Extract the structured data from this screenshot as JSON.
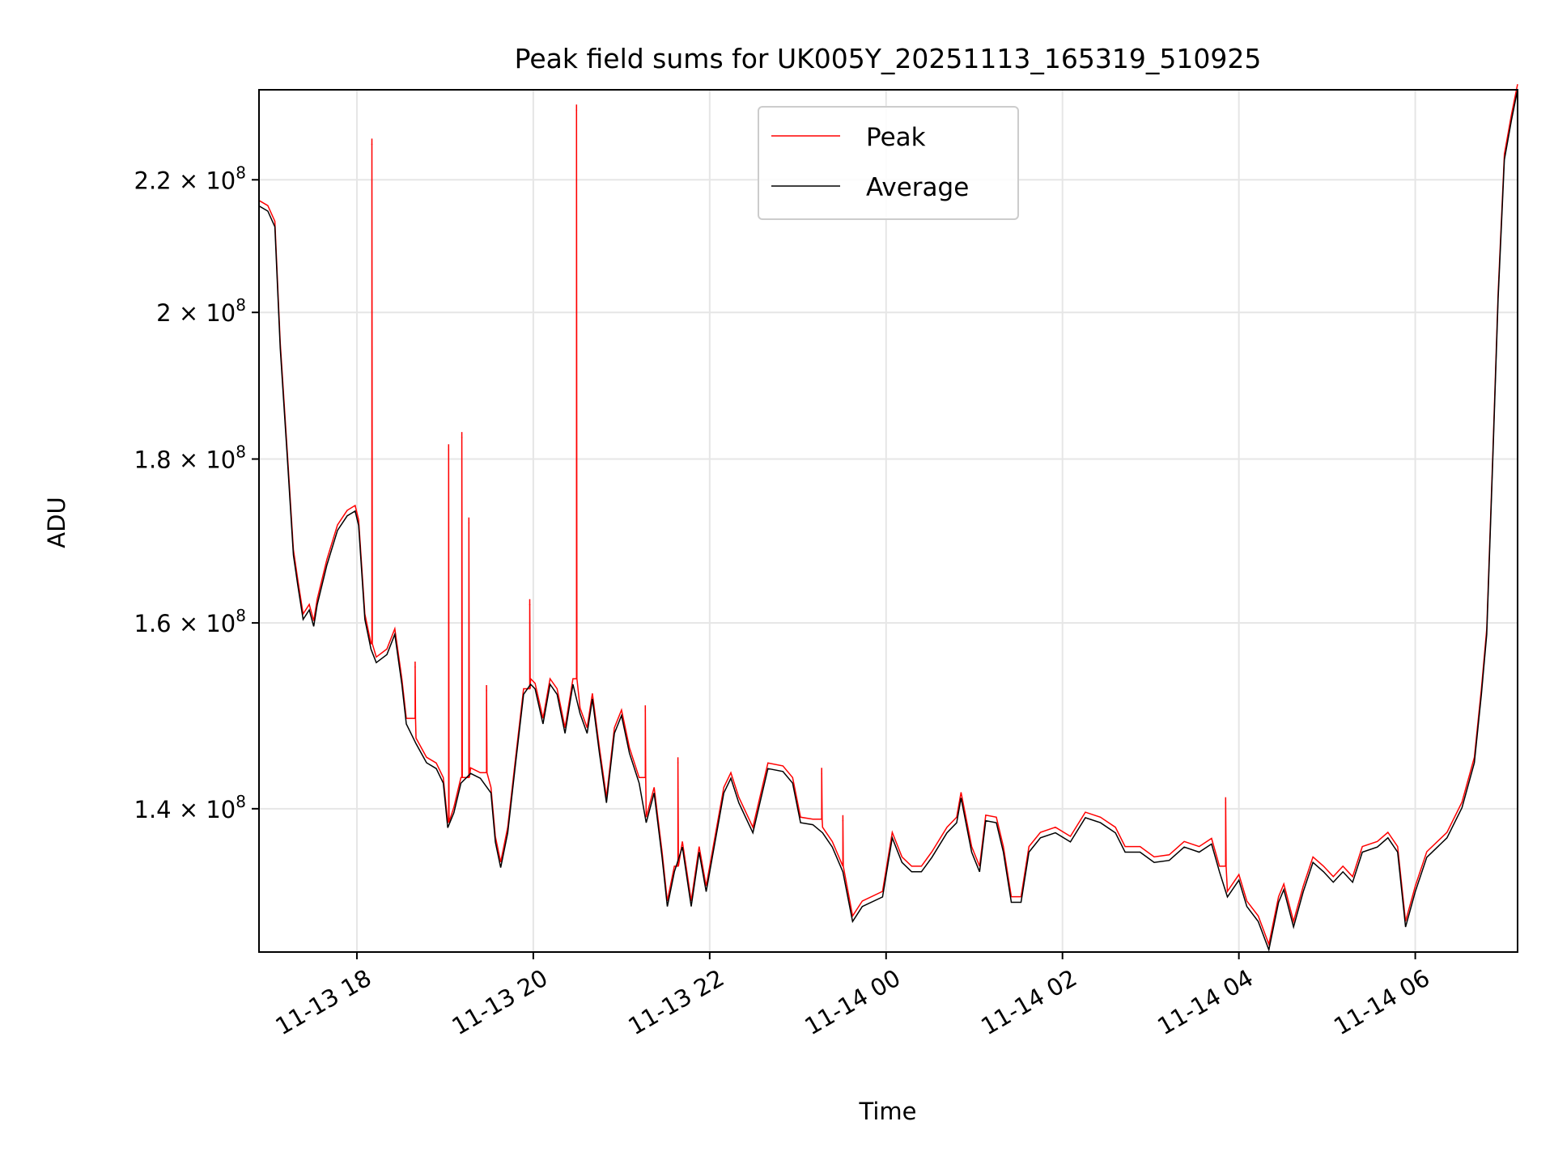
{
  "chart_data": {
    "type": "line",
    "title": "Peak field sums for UK005Y_20251113_165319_510925",
    "xlabel": "Time",
    "ylabel": "ADU",
    "x_units": "hours since 11-13 00:00",
    "y_units": "1e8 ADU",
    "yscale": "log",
    "xlim": [
      16.89,
      31.16
    ],
    "ylim": [
      1.263,
      2.347
    ],
    "grid": true,
    "legend": {
      "placement": "top-center",
      "entries": [
        "Peak",
        "Average"
      ]
    },
    "x_ticks": [
      {
        "value": 18,
        "label": "11-13 18"
      },
      {
        "value": 20,
        "label": "11-13 20"
      },
      {
        "value": 22,
        "label": "11-13 22"
      },
      {
        "value": 24,
        "label": "11-14 00"
      },
      {
        "value": 26,
        "label": "11-14 02"
      },
      {
        "value": 28,
        "label": "11-14 04"
      },
      {
        "value": 30,
        "label": "11-14 06"
      }
    ],
    "y_ticks": [
      {
        "value": 1.4,
        "mantissa": "1.4",
        "exp": "8"
      },
      {
        "value": 1.6,
        "mantissa": "1.6",
        "exp": "8"
      },
      {
        "value": 1.8,
        "mantissa": "1.8",
        "exp": "8"
      },
      {
        "value": 2.0,
        "mantissa": "2",
        "exp": "8"
      },
      {
        "value": 2.2,
        "mantissa": "2.2",
        "exp": "8"
      }
    ],
    "colors": {
      "Peak": "#ff0000",
      "Average": "#000000",
      "grid": "#e6e6e6"
    },
    "average": [
      [
        16.89,
        2.159
      ],
      [
        16.99,
        2.151
      ],
      [
        17.07,
        2.127
      ],
      [
        17.13,
        1.95
      ],
      [
        17.21,
        1.803
      ],
      [
        17.28,
        1.68
      ],
      [
        17.33,
        1.644
      ],
      [
        17.39,
        1.604
      ],
      [
        17.46,
        1.615
      ],
      [
        17.51,
        1.596
      ],
      [
        17.55,
        1.621
      ],
      [
        17.66,
        1.668
      ],
      [
        17.78,
        1.71
      ],
      [
        17.89,
        1.728
      ],
      [
        17.98,
        1.734
      ],
      [
        18.02,
        1.716
      ],
      [
        18.09,
        1.604
      ],
      [
        18.16,
        1.57
      ],
      [
        18.22,
        1.555
      ],
      [
        18.34,
        1.564
      ],
      [
        18.43,
        1.587
      ],
      [
        18.51,
        1.531
      ],
      [
        18.56,
        1.488
      ],
      [
        18.67,
        1.467
      ],
      [
        18.79,
        1.447
      ],
      [
        18.9,
        1.441
      ],
      [
        18.98,
        1.426
      ],
      [
        19.03,
        1.381
      ],
      [
        19.1,
        1.396
      ],
      [
        19.18,
        1.426
      ],
      [
        19.29,
        1.436
      ],
      [
        19.4,
        1.431
      ],
      [
        19.52,
        1.416
      ],
      [
        19.57,
        1.367
      ],
      [
        19.63,
        1.342
      ],
      [
        19.71,
        1.376
      ],
      [
        19.8,
        1.447
      ],
      [
        19.89,
        1.52
      ],
      [
        19.97,
        1.531
      ],
      [
        20.02,
        1.526
      ],
      [
        20.11,
        1.488
      ],
      [
        20.19,
        1.531
      ],
      [
        20.27,
        1.52
      ],
      [
        20.36,
        1.478
      ],
      [
        20.45,
        1.531
      ],
      [
        20.53,
        1.499
      ],
      [
        20.61,
        1.478
      ],
      [
        20.67,
        1.515
      ],
      [
        20.75,
        1.457
      ],
      [
        20.83,
        1.406
      ],
      [
        20.92,
        1.478
      ],
      [
        21.0,
        1.497
      ],
      [
        21.09,
        1.457
      ],
      [
        21.2,
        1.426
      ],
      [
        21.28,
        1.386
      ],
      [
        21.37,
        1.416
      ],
      [
        21.46,
        1.352
      ],
      [
        21.52,
        1.305
      ],
      [
        21.6,
        1.338
      ],
      [
        21.69,
        1.362
      ],
      [
        21.79,
        1.305
      ],
      [
        21.88,
        1.357
      ],
      [
        21.96,
        1.319
      ],
      [
        22.04,
        1.357
      ],
      [
        22.16,
        1.416
      ],
      [
        22.24,
        1.431
      ],
      [
        22.33,
        1.406
      ],
      [
        22.49,
        1.376
      ],
      [
        22.66,
        1.441
      ],
      [
        22.83,
        1.438
      ],
      [
        22.94,
        1.426
      ],
      [
        23.03,
        1.386
      ],
      [
        23.17,
        1.384
      ],
      [
        23.28,
        1.376
      ],
      [
        23.39,
        1.362
      ],
      [
        23.51,
        1.338
      ],
      [
        23.62,
        1.291
      ],
      [
        23.73,
        1.305
      ],
      [
        23.96,
        1.314
      ],
      [
        24.07,
        1.371
      ],
      [
        24.18,
        1.347
      ],
      [
        24.29,
        1.338
      ],
      [
        24.4,
        1.338
      ],
      [
        24.52,
        1.352
      ],
      [
        24.69,
        1.376
      ],
      [
        24.8,
        1.386
      ],
      [
        24.85,
        1.411
      ],
      [
        24.97,
        1.357
      ],
      [
        25.06,
        1.338
      ],
      [
        25.13,
        1.388
      ],
      [
        25.25,
        1.386
      ],
      [
        25.33,
        1.357
      ],
      [
        25.42,
        1.309
      ],
      [
        25.53,
        1.309
      ],
      [
        25.62,
        1.357
      ],
      [
        25.75,
        1.371
      ],
      [
        25.92,
        1.376
      ],
      [
        26.09,
        1.367
      ],
      [
        26.26,
        1.391
      ],
      [
        26.43,
        1.386
      ],
      [
        26.6,
        1.376
      ],
      [
        26.71,
        1.357
      ],
      [
        26.88,
        1.357
      ],
      [
        27.04,
        1.347
      ],
      [
        27.21,
        1.349
      ],
      [
        27.38,
        1.362
      ],
      [
        27.55,
        1.357
      ],
      [
        27.69,
        1.365
      ],
      [
        27.78,
        1.338
      ],
      [
        27.87,
        1.314
      ],
      [
        28.0,
        1.33
      ],
      [
        28.09,
        1.305
      ],
      [
        28.22,
        1.291
      ],
      [
        28.34,
        1.265
      ],
      [
        28.45,
        1.309
      ],
      [
        28.51,
        1.321
      ],
      [
        28.62,
        1.286
      ],
      [
        28.73,
        1.319
      ],
      [
        28.84,
        1.347
      ],
      [
        28.96,
        1.338
      ],
      [
        29.07,
        1.328
      ],
      [
        29.18,
        1.338
      ],
      [
        29.29,
        1.328
      ],
      [
        29.4,
        1.357
      ],
      [
        29.57,
        1.362
      ],
      [
        29.69,
        1.371
      ],
      [
        29.8,
        1.357
      ],
      [
        29.89,
        1.286
      ],
      [
        30.0,
        1.319
      ],
      [
        30.13,
        1.352
      ],
      [
        30.36,
        1.371
      ],
      [
        30.53,
        1.401
      ],
      [
        30.67,
        1.447
      ],
      [
        30.75,
        1.52
      ],
      [
        30.81,
        1.587
      ],
      [
        30.88,
        1.803
      ],
      [
        30.94,
        2.021
      ],
      [
        31.01,
        2.232
      ],
      [
        31.09,
        2.296
      ],
      [
        31.16,
        2.347
      ]
    ],
    "peak_spikes": [
      [
        18.17,
        2.257
      ],
      [
        18.66,
        1.55
      ],
      [
        19.04,
        1.812
      ],
      [
        19.19,
        1.828
      ],
      [
        19.27,
        1.719
      ],
      [
        19.47,
        1.524
      ],
      [
        19.96,
        1.621
      ],
      [
        20.49,
        2.313
      ],
      [
        21.27,
        1.502
      ],
      [
        21.64,
        1.447
      ],
      [
        23.27,
        1.436
      ],
      [
        23.51,
        1.388
      ],
      [
        27.85,
        1.406
      ]
    ]
  }
}
